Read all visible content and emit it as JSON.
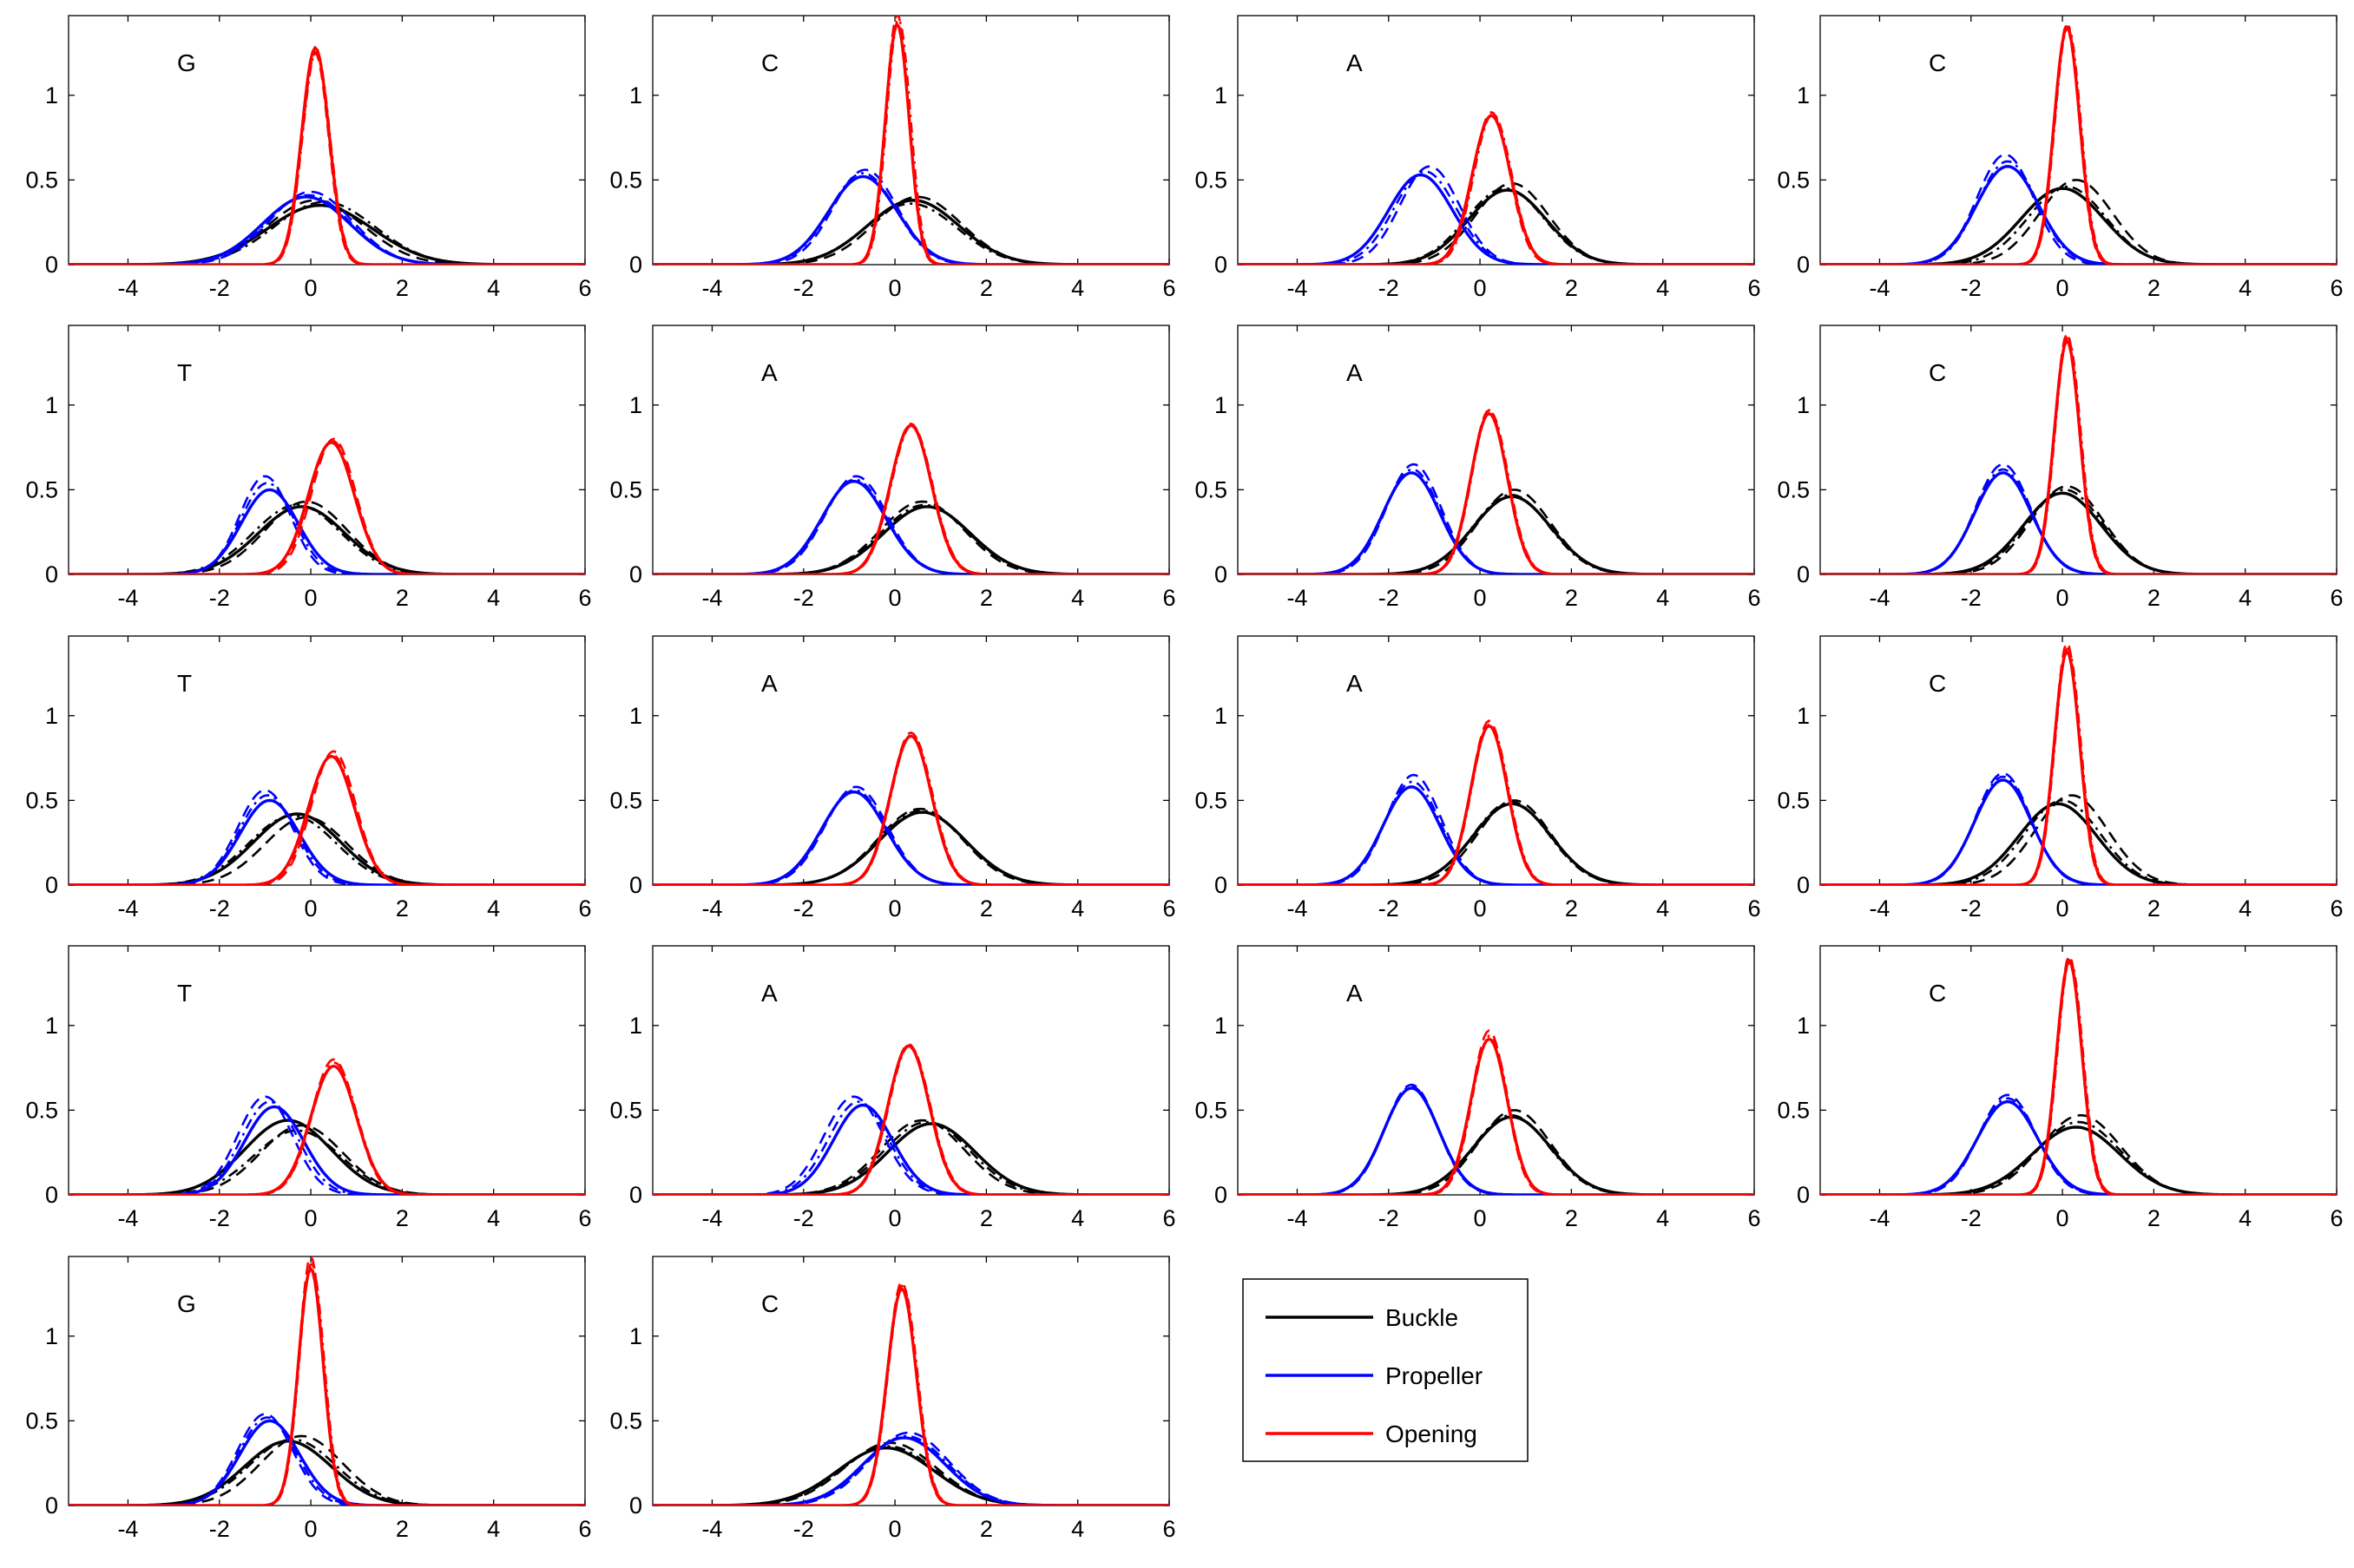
{
  "chart_data": {
    "type": "line",
    "layout": "small-multiples grid, 4 columns",
    "x_ticks": [
      -4,
      -2,
      0,
      2,
      4,
      6
    ],
    "y_ticks": [
      0,
      0.5,
      1
    ],
    "y_tick_labels": [
      "0",
      "0.5",
      "1"
    ],
    "xlim": [
      -5.3,
      6
    ],
    "ylim": [
      0,
      1.47
    ],
    "grid": false,
    "legend_position": "right of bottom row",
    "series_styles": "solid, dashed and dash-dot curve per parameter",
    "legend": [
      {
        "label": "Buckle",
        "color": "#000000"
      },
      {
        "label": "Propeller",
        "color": "#0000ff"
      },
      {
        "label": "Opening",
        "color": "#ff0000"
      }
    ],
    "colors": {
      "buckle": "#000000",
      "propeller": "#0000ff",
      "opening": "#ff0000"
    },
    "panels": [
      {
        "label": "G",
        "buckle": [
          {
            "mu": 0.2,
            "sd": 1.15,
            "peak": 0.35
          },
          {
            "mu": 0.1,
            "sd": 1.05,
            "peak": 0.38
          },
          {
            "mu": 0.3,
            "sd": 1.1,
            "peak": 0.37
          }
        ],
        "propeller": [
          {
            "mu": -0.1,
            "sd": 0.95,
            "peak": 0.4
          },
          {
            "mu": 0.0,
            "sd": 0.9,
            "peak": 0.43
          },
          {
            "mu": -0.05,
            "sd": 0.92,
            "peak": 0.41
          }
        ],
        "opening": [
          {
            "mu": 0.1,
            "sd": 0.3,
            "peak": 1.28
          },
          {
            "mu": 0.1,
            "sd": 0.29,
            "peak": 1.25
          },
          {
            "mu": 0.12,
            "sd": 0.3,
            "peak": 1.26
          }
        ]
      },
      {
        "label": "C",
        "buckle": [
          {
            "mu": 0.4,
            "sd": 1.0,
            "peak": 0.38
          },
          {
            "mu": 0.5,
            "sd": 0.95,
            "peak": 0.4
          },
          {
            "mu": 0.35,
            "sd": 1.0,
            "peak": 0.36
          }
        ],
        "propeller": [
          {
            "mu": -0.7,
            "sd": 0.75,
            "peak": 0.52
          },
          {
            "mu": -0.65,
            "sd": 0.7,
            "peak": 0.56
          },
          {
            "mu": -0.7,
            "sd": 0.72,
            "peak": 0.54
          }
        ],
        "opening": [
          {
            "mu": 0.05,
            "sd": 0.26,
            "peak": 1.42
          },
          {
            "mu": 0.05,
            "sd": 0.25,
            "peak": 1.48
          },
          {
            "mu": 0.08,
            "sd": 0.26,
            "peak": 1.45
          }
        ]
      },
      {
        "label": "A",
        "buckle": [
          {
            "mu": 0.6,
            "sd": 0.85,
            "peak": 0.44
          },
          {
            "mu": 0.7,
            "sd": 0.8,
            "peak": 0.48
          },
          {
            "mu": 0.55,
            "sd": 0.85,
            "peak": 0.45
          }
        ],
        "propeller": [
          {
            "mu": -1.3,
            "sd": 0.7,
            "peak": 0.53
          },
          {
            "mu": -1.1,
            "sd": 0.65,
            "peak": 0.58
          },
          {
            "mu": -1.2,
            "sd": 0.68,
            "peak": 0.55
          }
        ],
        "opening": [
          {
            "mu": 0.25,
            "sd": 0.42,
            "peak": 0.88
          },
          {
            "mu": 0.25,
            "sd": 0.4,
            "peak": 0.9
          },
          {
            "mu": 0.28,
            "sd": 0.41,
            "peak": 0.89
          }
        ]
      },
      {
        "label": "C",
        "buckle": [
          {
            "mu": 0.0,
            "sd": 0.9,
            "peak": 0.45
          },
          {
            "mu": 0.3,
            "sd": 0.8,
            "peak": 0.5
          },
          {
            "mu": 0.1,
            "sd": 0.85,
            "peak": 0.46
          }
        ],
        "propeller": [
          {
            "mu": -1.2,
            "sd": 0.68,
            "peak": 0.58
          },
          {
            "mu": -1.25,
            "sd": 0.62,
            "peak": 0.65
          },
          {
            "mu": -1.2,
            "sd": 0.65,
            "peak": 0.61
          }
        ],
        "opening": [
          {
            "mu": 0.1,
            "sd": 0.28,
            "peak": 1.4
          },
          {
            "mu": 0.1,
            "sd": 0.27,
            "peak": 1.42
          },
          {
            "mu": 0.12,
            "sd": 0.28,
            "peak": 1.41
          }
        ]
      },
      {
        "label": "T",
        "buckle": [
          {
            "mu": -0.2,
            "sd": 0.95,
            "peak": 0.4
          },
          {
            "mu": -0.1,
            "sd": 0.9,
            "peak": 0.43
          },
          {
            "mu": -0.3,
            "sd": 0.95,
            "peak": 0.41
          }
        ],
        "propeller": [
          {
            "mu": -0.9,
            "sd": 0.62,
            "peak": 0.5
          },
          {
            "mu": -1.0,
            "sd": 0.55,
            "peak": 0.58
          },
          {
            "mu": -0.95,
            "sd": 0.58,
            "peak": 0.54
          }
        ],
        "opening": [
          {
            "mu": 0.45,
            "sd": 0.5,
            "peak": 0.78
          },
          {
            "mu": 0.5,
            "sd": 0.48,
            "peak": 0.8
          },
          {
            "mu": 0.47,
            "sd": 0.49,
            "peak": 0.79
          }
        ]
      },
      {
        "label": "A",
        "buckle": [
          {
            "mu": 0.7,
            "sd": 0.95,
            "peak": 0.4
          },
          {
            "mu": 0.6,
            "sd": 0.92,
            "peak": 0.43
          },
          {
            "mu": 0.65,
            "sd": 0.95,
            "peak": 0.41
          }
        ],
        "propeller": [
          {
            "mu": -0.9,
            "sd": 0.7,
            "peak": 0.55
          },
          {
            "mu": -0.85,
            "sd": 0.68,
            "peak": 0.58
          },
          {
            "mu": -0.88,
            "sd": 0.69,
            "peak": 0.56
          }
        ],
        "opening": [
          {
            "mu": 0.35,
            "sd": 0.45,
            "peak": 0.88
          },
          {
            "mu": 0.35,
            "sd": 0.44,
            "peak": 0.89
          },
          {
            "mu": 0.37,
            "sd": 0.45,
            "peak": 0.88
          }
        ]
      },
      {
        "label": "A",
        "buckle": [
          {
            "mu": 0.7,
            "sd": 0.85,
            "peak": 0.46
          },
          {
            "mu": 0.75,
            "sd": 0.8,
            "peak": 0.5
          },
          {
            "mu": 0.68,
            "sd": 0.83,
            "peak": 0.47
          }
        ],
        "propeller": [
          {
            "mu": -1.5,
            "sd": 0.62,
            "peak": 0.6
          },
          {
            "mu": -1.45,
            "sd": 0.6,
            "peak": 0.65
          },
          {
            "mu": -1.48,
            "sd": 0.61,
            "peak": 0.62
          }
        ],
        "opening": [
          {
            "mu": 0.2,
            "sd": 0.4,
            "peak": 0.95
          },
          {
            "mu": 0.2,
            "sd": 0.39,
            "peak": 0.97
          },
          {
            "mu": 0.22,
            "sd": 0.4,
            "peak": 0.96
          }
        ]
      },
      {
        "label": "C",
        "buckle": [
          {
            "mu": 0.0,
            "sd": 0.85,
            "peak": 0.48
          },
          {
            "mu": 0.1,
            "sd": 0.8,
            "peak": 0.52
          },
          {
            "mu": 0.05,
            "sd": 0.83,
            "peak": 0.5
          }
        ],
        "propeller": [
          {
            "mu": -1.3,
            "sd": 0.62,
            "peak": 0.6
          },
          {
            "mu": -1.3,
            "sd": 0.6,
            "peak": 0.65
          },
          {
            "mu": -1.3,
            "sd": 0.61,
            "peak": 0.62
          }
        ],
        "opening": [
          {
            "mu": 0.1,
            "sd": 0.28,
            "peak": 1.38
          },
          {
            "mu": 0.1,
            "sd": 0.27,
            "peak": 1.42
          },
          {
            "mu": 0.12,
            "sd": 0.28,
            "peak": 1.4
          }
        ]
      },
      {
        "label": "T",
        "buckle": [
          {
            "mu": -0.3,
            "sd": 0.95,
            "peak": 0.42
          },
          {
            "mu": -0.1,
            "sd": 0.9,
            "peak": 0.4
          },
          {
            "mu": -0.4,
            "sd": 0.95,
            "peak": 0.41
          }
        ],
        "propeller": [
          {
            "mu": -0.9,
            "sd": 0.65,
            "peak": 0.5
          },
          {
            "mu": -1.0,
            "sd": 0.6,
            "peak": 0.56
          },
          {
            "mu": -0.95,
            "sd": 0.62,
            "peak": 0.53
          }
        ],
        "opening": [
          {
            "mu": 0.45,
            "sd": 0.5,
            "peak": 0.76
          },
          {
            "mu": 0.5,
            "sd": 0.48,
            "peak": 0.79
          },
          {
            "mu": 0.47,
            "sd": 0.49,
            "peak": 0.77
          }
        ]
      },
      {
        "label": "A",
        "buckle": [
          {
            "mu": 0.6,
            "sd": 0.95,
            "peak": 0.43
          },
          {
            "mu": 0.55,
            "sd": 0.92,
            "peak": 0.45
          },
          {
            "mu": 0.58,
            "sd": 0.94,
            "peak": 0.44
          }
        ],
        "propeller": [
          {
            "mu": -0.9,
            "sd": 0.7,
            "peak": 0.55
          },
          {
            "mu": -0.85,
            "sd": 0.68,
            "peak": 0.58
          },
          {
            "mu": -0.88,
            "sd": 0.69,
            "peak": 0.56
          }
        ],
        "opening": [
          {
            "mu": 0.35,
            "sd": 0.45,
            "peak": 0.88
          },
          {
            "mu": 0.35,
            "sd": 0.44,
            "peak": 0.9
          },
          {
            "mu": 0.37,
            "sd": 0.45,
            "peak": 0.89
          }
        ]
      },
      {
        "label": "A",
        "buckle": [
          {
            "mu": 0.7,
            "sd": 0.85,
            "peak": 0.48
          },
          {
            "mu": 0.75,
            "sd": 0.8,
            "peak": 0.5
          },
          {
            "mu": 0.68,
            "sd": 0.83,
            "peak": 0.49
          }
        ],
        "propeller": [
          {
            "mu": -1.5,
            "sd": 0.62,
            "peak": 0.58
          },
          {
            "mu": -1.45,
            "sd": 0.6,
            "peak": 0.65
          },
          {
            "mu": -1.48,
            "sd": 0.61,
            "peak": 0.61
          }
        ],
        "opening": [
          {
            "mu": 0.2,
            "sd": 0.4,
            "peak": 0.94
          },
          {
            "mu": 0.2,
            "sd": 0.39,
            "peak": 0.97
          },
          {
            "mu": 0.22,
            "sd": 0.4,
            "peak": 0.95
          }
        ]
      },
      {
        "label": "C",
        "buckle": [
          {
            "mu": -0.1,
            "sd": 0.85,
            "peak": 0.48
          },
          {
            "mu": 0.2,
            "sd": 0.8,
            "peak": 0.53
          },
          {
            "mu": 0.0,
            "sd": 0.83,
            "peak": 0.5
          }
        ],
        "propeller": [
          {
            "mu": -1.3,
            "sd": 0.62,
            "peak": 0.62
          },
          {
            "mu": -1.3,
            "sd": 0.6,
            "peak": 0.66
          },
          {
            "mu": -1.3,
            "sd": 0.61,
            "peak": 0.64
          }
        ],
        "opening": [
          {
            "mu": 0.1,
            "sd": 0.28,
            "peak": 1.38
          },
          {
            "mu": 0.1,
            "sd": 0.27,
            "peak": 1.43
          },
          {
            "mu": 0.12,
            "sd": 0.28,
            "peak": 1.4
          }
        ]
      },
      {
        "label": "T",
        "buckle": [
          {
            "mu": -0.5,
            "sd": 0.95,
            "peak": 0.44
          },
          {
            "mu": -0.2,
            "sd": 0.9,
            "peak": 0.41
          },
          {
            "mu": -0.3,
            "sd": 0.95,
            "peak": 0.38
          }
        ],
        "propeller": [
          {
            "mu": -0.8,
            "sd": 0.65,
            "peak": 0.52
          },
          {
            "mu": -1.0,
            "sd": 0.6,
            "peak": 0.58
          },
          {
            "mu": -0.9,
            "sd": 0.62,
            "peak": 0.55
          }
        ],
        "opening": [
          {
            "mu": 0.5,
            "sd": 0.5,
            "peak": 0.76
          },
          {
            "mu": 0.5,
            "sd": 0.48,
            "peak": 0.8
          },
          {
            "mu": 0.52,
            "sd": 0.49,
            "peak": 0.78
          }
        ]
      },
      {
        "label": "A",
        "buckle": [
          {
            "mu": 0.8,
            "sd": 0.95,
            "peak": 0.42
          },
          {
            "mu": 0.6,
            "sd": 0.92,
            "peak": 0.44
          },
          {
            "mu": 0.7,
            "sd": 0.94,
            "peak": 0.43
          }
        ],
        "propeller": [
          {
            "mu": -0.7,
            "sd": 0.65,
            "peak": 0.53
          },
          {
            "mu": -0.9,
            "sd": 0.65,
            "peak": 0.58
          },
          {
            "mu": -0.8,
            "sd": 0.65,
            "peak": 0.55
          }
        ],
        "opening": [
          {
            "mu": 0.3,
            "sd": 0.45,
            "peak": 0.88
          },
          {
            "mu": 0.3,
            "sd": 0.44,
            "peak": 0.89
          },
          {
            "mu": 0.32,
            "sd": 0.45,
            "peak": 0.88
          }
        ]
      },
      {
        "label": "A",
        "buckle": [
          {
            "mu": 0.7,
            "sd": 0.85,
            "peak": 0.46
          },
          {
            "mu": 0.75,
            "sd": 0.8,
            "peak": 0.5
          },
          {
            "mu": 0.68,
            "sd": 0.83,
            "peak": 0.47
          }
        ],
        "propeller": [
          {
            "mu": -1.5,
            "sd": 0.6,
            "peak": 0.63
          },
          {
            "mu": -1.5,
            "sd": 0.58,
            "peak": 0.65
          },
          {
            "mu": -1.5,
            "sd": 0.59,
            "peak": 0.64
          }
        ],
        "opening": [
          {
            "mu": 0.2,
            "sd": 0.4,
            "peak": 0.92
          },
          {
            "mu": 0.2,
            "sd": 0.38,
            "peak": 0.97
          },
          {
            "mu": 0.22,
            "sd": 0.39,
            "peak": 0.94
          }
        ]
      },
      {
        "label": "C",
        "buckle": [
          {
            "mu": 0.3,
            "sd": 0.95,
            "peak": 0.4
          },
          {
            "mu": 0.4,
            "sd": 0.88,
            "peak": 0.47
          },
          {
            "mu": 0.35,
            "sd": 0.92,
            "peak": 0.43
          }
        ],
        "propeller": [
          {
            "mu": -1.2,
            "sd": 0.66,
            "peak": 0.55
          },
          {
            "mu": -1.2,
            "sd": 0.62,
            "peak": 0.59
          },
          {
            "mu": -1.2,
            "sd": 0.64,
            "peak": 0.57
          }
        ],
        "opening": [
          {
            "mu": 0.15,
            "sd": 0.28,
            "peak": 1.38
          },
          {
            "mu": 0.15,
            "sd": 0.27,
            "peak": 1.41
          },
          {
            "mu": 0.17,
            "sd": 0.28,
            "peak": 1.39
          }
        ]
      },
      {
        "label": "G",
        "buckle": [
          {
            "mu": -0.5,
            "sd": 0.95,
            "peak": 0.38
          },
          {
            "mu": -0.2,
            "sd": 0.9,
            "peak": 0.41
          },
          {
            "mu": -0.4,
            "sd": 0.95,
            "peak": 0.39
          }
        ],
        "propeller": [
          {
            "mu": -0.9,
            "sd": 0.65,
            "peak": 0.5
          },
          {
            "mu": -1.0,
            "sd": 0.6,
            "peak": 0.54
          },
          {
            "mu": -0.95,
            "sd": 0.62,
            "peak": 0.52
          }
        ],
        "opening": [
          {
            "mu": 0.0,
            "sd": 0.27,
            "peak": 1.4
          },
          {
            "mu": 0.0,
            "sd": 0.26,
            "peak": 1.47
          },
          {
            "mu": 0.02,
            "sd": 0.27,
            "peak": 1.43
          }
        ]
      },
      {
        "label": "C",
        "buckle": [
          {
            "mu": -0.2,
            "sd": 1.05,
            "peak": 0.34
          },
          {
            "mu": -0.1,
            "sd": 1.0,
            "peak": 0.37
          },
          {
            "mu": -0.15,
            "sd": 1.02,
            "peak": 0.35
          }
        ],
        "propeller": [
          {
            "mu": 0.2,
            "sd": 0.9,
            "peak": 0.4
          },
          {
            "mu": 0.3,
            "sd": 0.88,
            "peak": 0.43
          },
          {
            "mu": 0.25,
            "sd": 0.9,
            "peak": 0.41
          }
        ],
        "opening": [
          {
            "mu": 0.15,
            "sd": 0.32,
            "peak": 1.28
          },
          {
            "mu": 0.15,
            "sd": 0.31,
            "peak": 1.32
          },
          {
            "mu": 0.17,
            "sd": 0.32,
            "peak": 1.3
          }
        ]
      }
    ]
  }
}
